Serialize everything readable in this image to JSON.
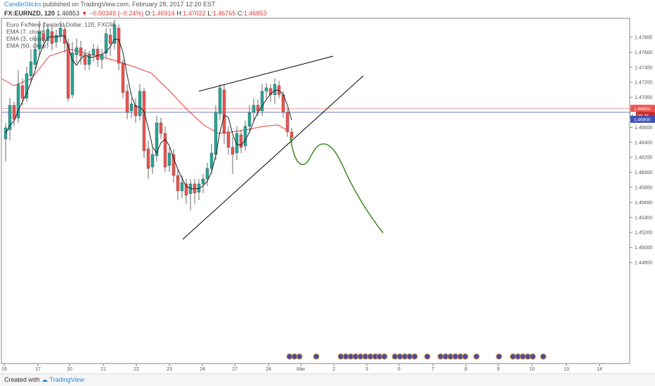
{
  "header": {
    "author": "CandleSticks",
    "published": "published on TradingView.com, February 28, 2017 12:20 EST"
  },
  "symbol_line": {
    "symbol": "FX:EURNZD, 120",
    "last": "1.46853",
    "arrow": "▼",
    "change": "−0.00349 (−0.24%)",
    "o_label": "O:",
    "o_value": "1.46914",
    "h_label": "H:",
    "h_value": "1.47022",
    "l_label": "L:",
    "l_value": "1.46765",
    "c_label": "C:",
    "c_value": "1.46853"
  },
  "legend": {
    "title": "Euro Fx/New Zealand Dollar, 120, FXCM",
    "ema7": "EMA (7, close)",
    "ema3": "EMA (3, close)",
    "ema50": "EMA (50, close)"
  },
  "footer": {
    "created": "Created with",
    "brand": "TradingView"
  },
  "badges": {
    "last_price": "1.46853",
    "countdown": "39:46",
    "level": "1.46800",
    "level_prefix": "1."
  },
  "colors": {
    "up": "#26a69a",
    "down": "#ef5350",
    "ema50": "#e53935",
    "ema_short": "#222222",
    "projection": "#3c8c1e",
    "trendline": "#000000",
    "level_line": "#3f51b5",
    "price_line": "#ef5350"
  },
  "chart_data": {
    "type": "candlestick",
    "y_ticks": [
      "1.47800",
      "1.47600",
      "1.47400",
      "1.47200",
      "1.47000",
      "1.46800",
      "1.46600",
      "1.46400",
      "1.46200",
      "1.46000",
      "1.45800",
      "1.45600",
      "1.45400",
      "1.45200",
      "1.45000",
      "1.44800"
    ],
    "x_ticks": [
      "16",
      "17",
      "20",
      "21",
      "22",
      "23",
      "24",
      "27",
      "28",
      "Mar",
      "2",
      "3",
      "6",
      "7",
      "8",
      "9",
      "10",
      "13",
      "14"
    ],
    "ylim": [
      1.4465,
      1.4795
    ],
    "last_price": 1.46853,
    "horizontal_level": 1.468,
    "trend_lower": [
      [
        1.4585
      ],
      [
        1.4685
      ]
    ],
    "trend_upper": [
      [
        1.4732
      ],
      [
        1.4762
      ]
    ]
  }
}
